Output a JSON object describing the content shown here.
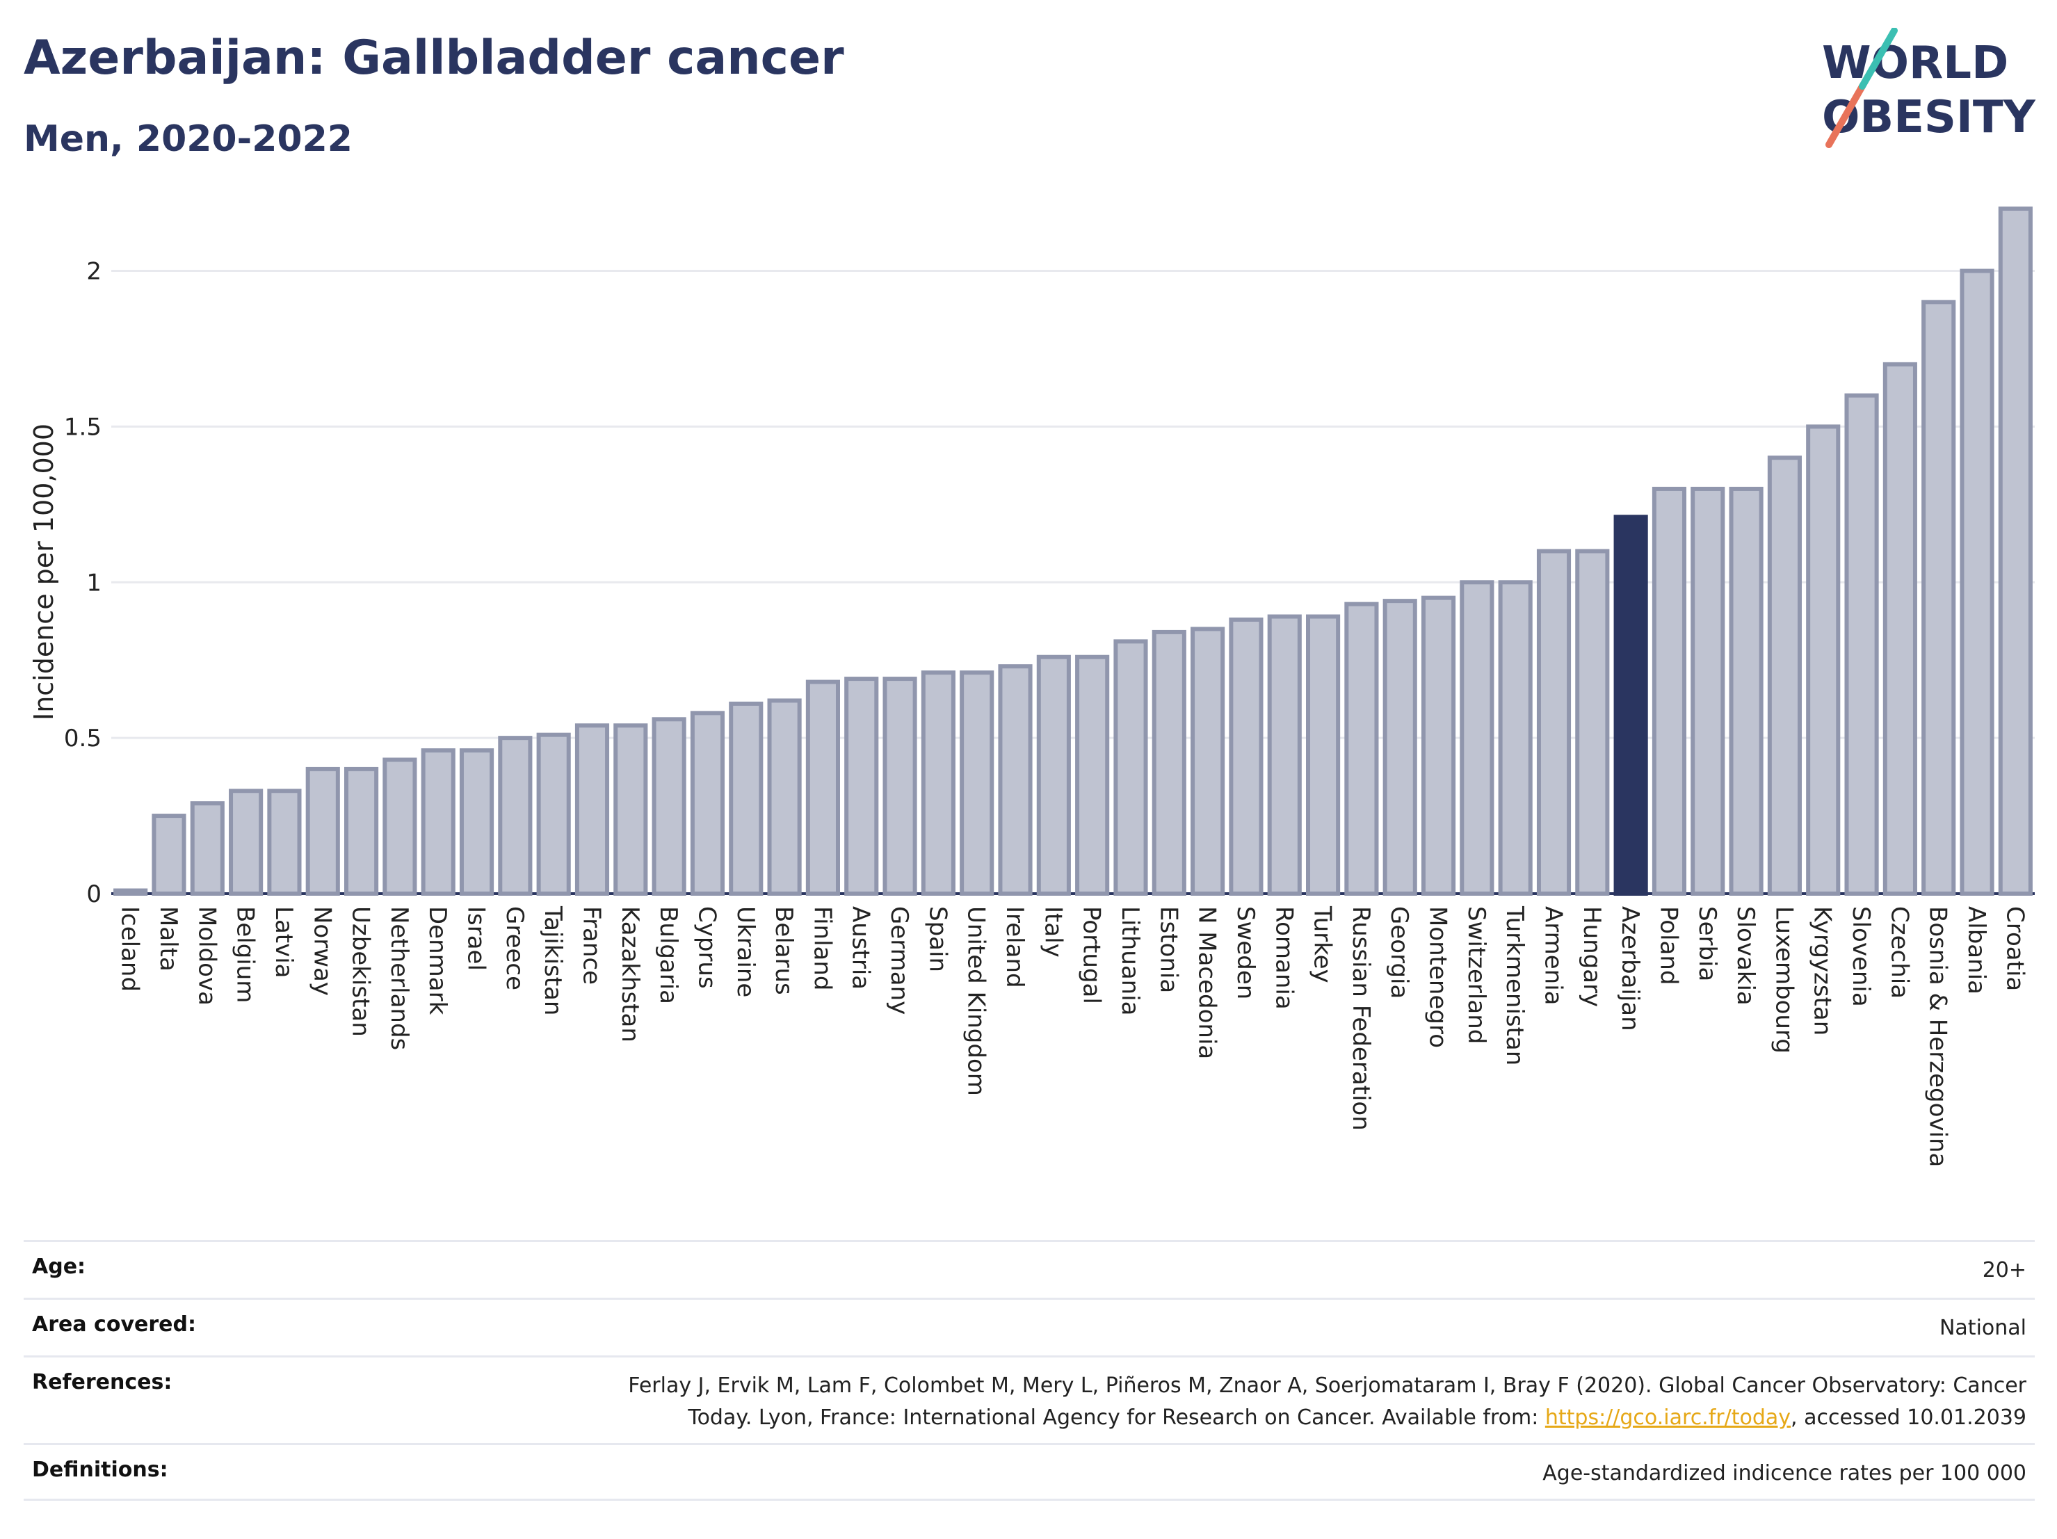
{
  "title": "Azerbaijan: Gallbladder cancer",
  "subtitle": "Men, 2020-2022",
  "logo": {
    "line1": "WORLD",
    "line2": "OBESITY"
  },
  "chart_data": {
    "type": "bar",
    "ylabel": "Incidence per 100,000",
    "ylim": [
      0,
      2.2
    ],
    "yticks": [
      0,
      0.5,
      1,
      1.5,
      2
    ],
    "ytick_labels": [
      "0",
      "0.5",
      "1",
      "1.5",
      "2"
    ],
    "highlight": "Azerbaijan",
    "colors": {
      "bar": "#bfc3d1",
      "bar_edge": "#9096ad",
      "highlight": "#2a3560",
      "grid": "#e8e9ee"
    },
    "categories": [
      "Iceland",
      "Malta",
      "Moldova",
      "Belgium",
      "Latvia",
      "Norway",
      "Uzbekistan",
      "Netherlands",
      "Denmark",
      "Israel",
      "Greece",
      "Tajikistan",
      "France",
      "Kazakhstan",
      "Bulgaria",
      "Cyprus",
      "Ukraine",
      "Belarus",
      "Finland",
      "Austria",
      "Germany",
      "Spain",
      "United Kingdom",
      "Ireland",
      "Italy",
      "Portugal",
      "Lithuania",
      "Estonia",
      "N Macedonia",
      "Sweden",
      "Romania",
      "Turkey",
      "Russian Federation",
      "Georgia",
      "Montenegro",
      "Switzerland",
      "Turkmenistan",
      "Armenia",
      "Hungary",
      "Azerbaijan",
      "Poland",
      "Serbia",
      "Slovakia",
      "Luxembourg",
      "Kyrgyzstan",
      "Slovenia",
      "Czechia",
      "Bosnia & Herzegovina",
      "Albania",
      "Croatia"
    ],
    "values": [
      0.01,
      0.25,
      0.29,
      0.33,
      0.33,
      0.4,
      0.4,
      0.43,
      0.46,
      0.46,
      0.5,
      0.51,
      0.54,
      0.54,
      0.56,
      0.58,
      0.61,
      0.62,
      0.68,
      0.69,
      0.69,
      0.71,
      0.71,
      0.73,
      0.76,
      0.76,
      0.81,
      0.84,
      0.85,
      0.88,
      0.89,
      0.89,
      0.93,
      0.94,
      0.95,
      1.0,
      1.0,
      1.1,
      1.1,
      1.21,
      1.3,
      1.3,
      1.3,
      1.4,
      1.5,
      1.6,
      1.7,
      1.9,
      2.0,
      2.2
    ]
  },
  "meta": [
    {
      "label": "Age:",
      "value": "20+"
    },
    {
      "label": "Area covered:",
      "value": "National"
    },
    {
      "label": "References:",
      "value_prefix": "Ferlay J, Ervik M, Lam F, Colombet M, Mery L, Piñeros M, Znaor A, Soerjomataram I, Bray F (2020). Global Cancer Observatory: Cancer Today. Lyon, France: International Agency for Research on Cancer. Available from: ",
      "link": "https://gco.iarc.fr/today",
      "value_suffix": ", accessed 10.01.2039"
    },
    {
      "label": "Definitions:",
      "value": "Age-standardized indicence rates per 100 000"
    }
  ]
}
